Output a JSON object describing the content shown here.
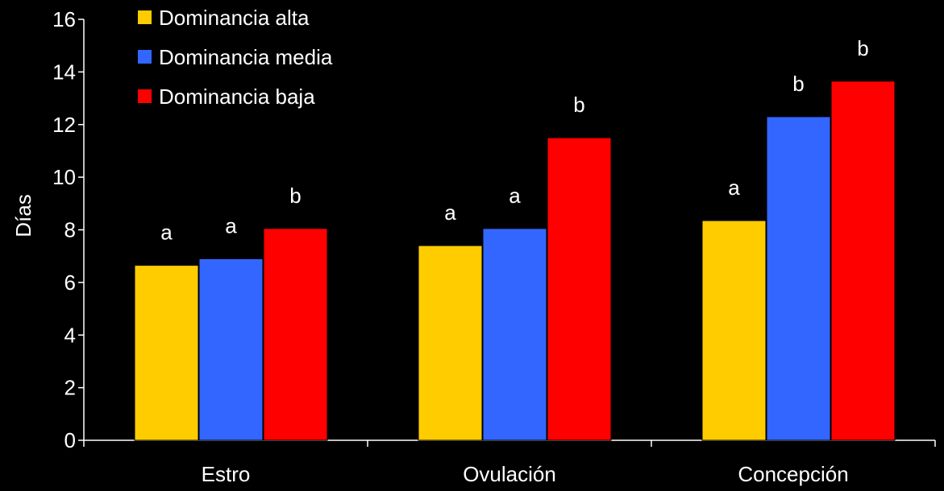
{
  "chart_data": {
    "type": "bar",
    "ylabel": "Días",
    "xlabel": "",
    "ylim": [
      0,
      16
    ],
    "yticks": [
      0,
      2,
      4,
      6,
      8,
      10,
      12,
      14,
      16
    ],
    "categories": [
      "Estro",
      "Ovulación",
      "Concepción"
    ],
    "series": [
      {
        "name": "Dominancia alta",
        "color": "#FFCC00",
        "values": [
          6.65,
          7.4,
          8.35
        ],
        "labels": [
          "a",
          "a",
          "a"
        ]
      },
      {
        "name": "Dominancia media",
        "color": "#3366FF",
        "values": [
          6.9,
          8.05,
          12.3
        ],
        "labels": [
          "a",
          "a",
          "b"
        ]
      },
      {
        "name": "Dominancia baja",
        "color": "#FF0000",
        "values": [
          8.05,
          11.5,
          13.65
        ],
        "labels": [
          "b",
          "b",
          "b"
        ]
      }
    ],
    "legend": "top-left",
    "grid": false
  }
}
